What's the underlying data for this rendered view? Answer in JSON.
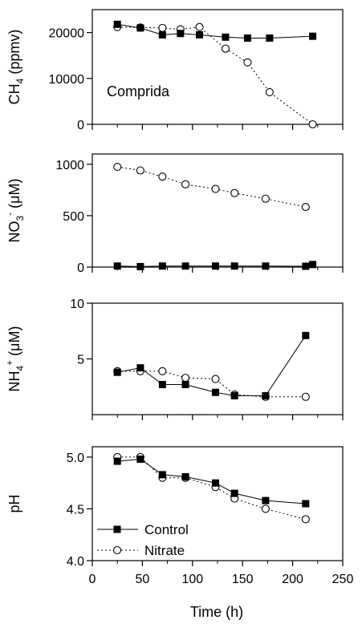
{
  "chart_data": [
    {
      "type": "line",
      "ylabel": "CH",
      "ylabel_sub": "4",
      "ylabel_unit": " (ppmv)",
      "annotation": "Comprida",
      "ylim": [
        0,
        25000
      ],
      "yticks": [
        0,
        10000,
        20000
      ],
      "ytick_labels": [
        "0",
        "10000",
        "20000"
      ],
      "series": [
        {
          "name": "Control",
          "x": [
            25,
            48,
            70,
            88,
            107,
            133,
            155,
            177,
            220
          ],
          "y": [
            21800,
            21000,
            19500,
            19800,
            19500,
            19000,
            18800,
            18800,
            19200
          ]
        },
        {
          "name": "Nitrate",
          "x": [
            25,
            48,
            70,
            88,
            107,
            133,
            155,
            177,
            220
          ],
          "y": [
            21200,
            21100,
            21000,
            20700,
            21200,
            16500,
            13500,
            7000,
            0
          ]
        }
      ]
    },
    {
      "type": "line",
      "ylabel": "NO",
      "ylabel_sub": "3",
      "ylabel_sup": "-",
      "ylabel_unit": " (μM)",
      "ylim": [
        0,
        1100
      ],
      "yticks": [
        0,
        500,
        1000
      ],
      "ytick_labels": [
        "0",
        "500",
        "1000"
      ],
      "series": [
        {
          "name": "Control",
          "x": [
            25,
            48,
            70,
            93,
            123,
            142,
            173,
            213,
            220
          ],
          "y": [
            10,
            5,
            10,
            10,
            10,
            10,
            10,
            8,
            25
          ]
        },
        {
          "name": "Nitrate",
          "x": [
            25,
            48,
            70,
            93,
            123,
            142,
            173,
            213
          ],
          "y": [
            975,
            940,
            880,
            805,
            760,
            720,
            665,
            585
          ]
        }
      ]
    },
    {
      "type": "line",
      "ylabel": "NH",
      "ylabel_sub": "4",
      "ylabel_sup": "+",
      "ylabel_unit": " (μM)",
      "ylim": [
        0,
        10
      ],
      "yticks": [
        5,
        10
      ],
      "ytick_labels": [
        "5",
        "10"
      ],
      "series": [
        {
          "name": "Control",
          "x": [
            25,
            48,
            70,
            93,
            123,
            142,
            173,
            213
          ],
          "y": [
            3.8,
            4.2,
            2.7,
            2.7,
            2.0,
            1.7,
            1.7,
            7.1
          ]
        },
        {
          "name": "Nitrate",
          "x": [
            25,
            48,
            70,
            93,
            123,
            142,
            173,
            213
          ],
          "y": [
            3.9,
            3.9,
            3.9,
            3.3,
            3.2,
            1.8,
            1.6,
            1.6
          ]
        }
      ]
    },
    {
      "type": "line",
      "ylabel": "pH",
      "xlabel": "Time (h)",
      "ylim": [
        4.0,
        5.1
      ],
      "yticks": [
        4.0,
        4.5,
        5.0
      ],
      "ytick_labels": [
        "4.0",
        "4.5",
        "5.0"
      ],
      "xlim": [
        0,
        250
      ],
      "xticks": [
        0,
        50,
        100,
        150,
        200,
        250
      ],
      "xtick_labels": [
        "0",
        "50",
        "100",
        "150",
        "200",
        "250"
      ],
      "series": [
        {
          "name": "Control",
          "x": [
            25,
            48,
            70,
            93,
            123,
            142,
            173,
            213
          ],
          "y": [
            4.96,
            4.98,
            4.83,
            4.81,
            4.75,
            4.65,
            4.58,
            4.55
          ]
        },
        {
          "name": "Nitrate",
          "x": [
            25,
            48,
            70,
            93,
            123,
            142,
            173,
            213
          ],
          "y": [
            5.0,
            5.0,
            4.8,
            4.8,
            4.71,
            4.6,
            4.5,
            4.4
          ]
        }
      ],
      "legend": [
        "Control",
        "Nitrate"
      ]
    }
  ]
}
